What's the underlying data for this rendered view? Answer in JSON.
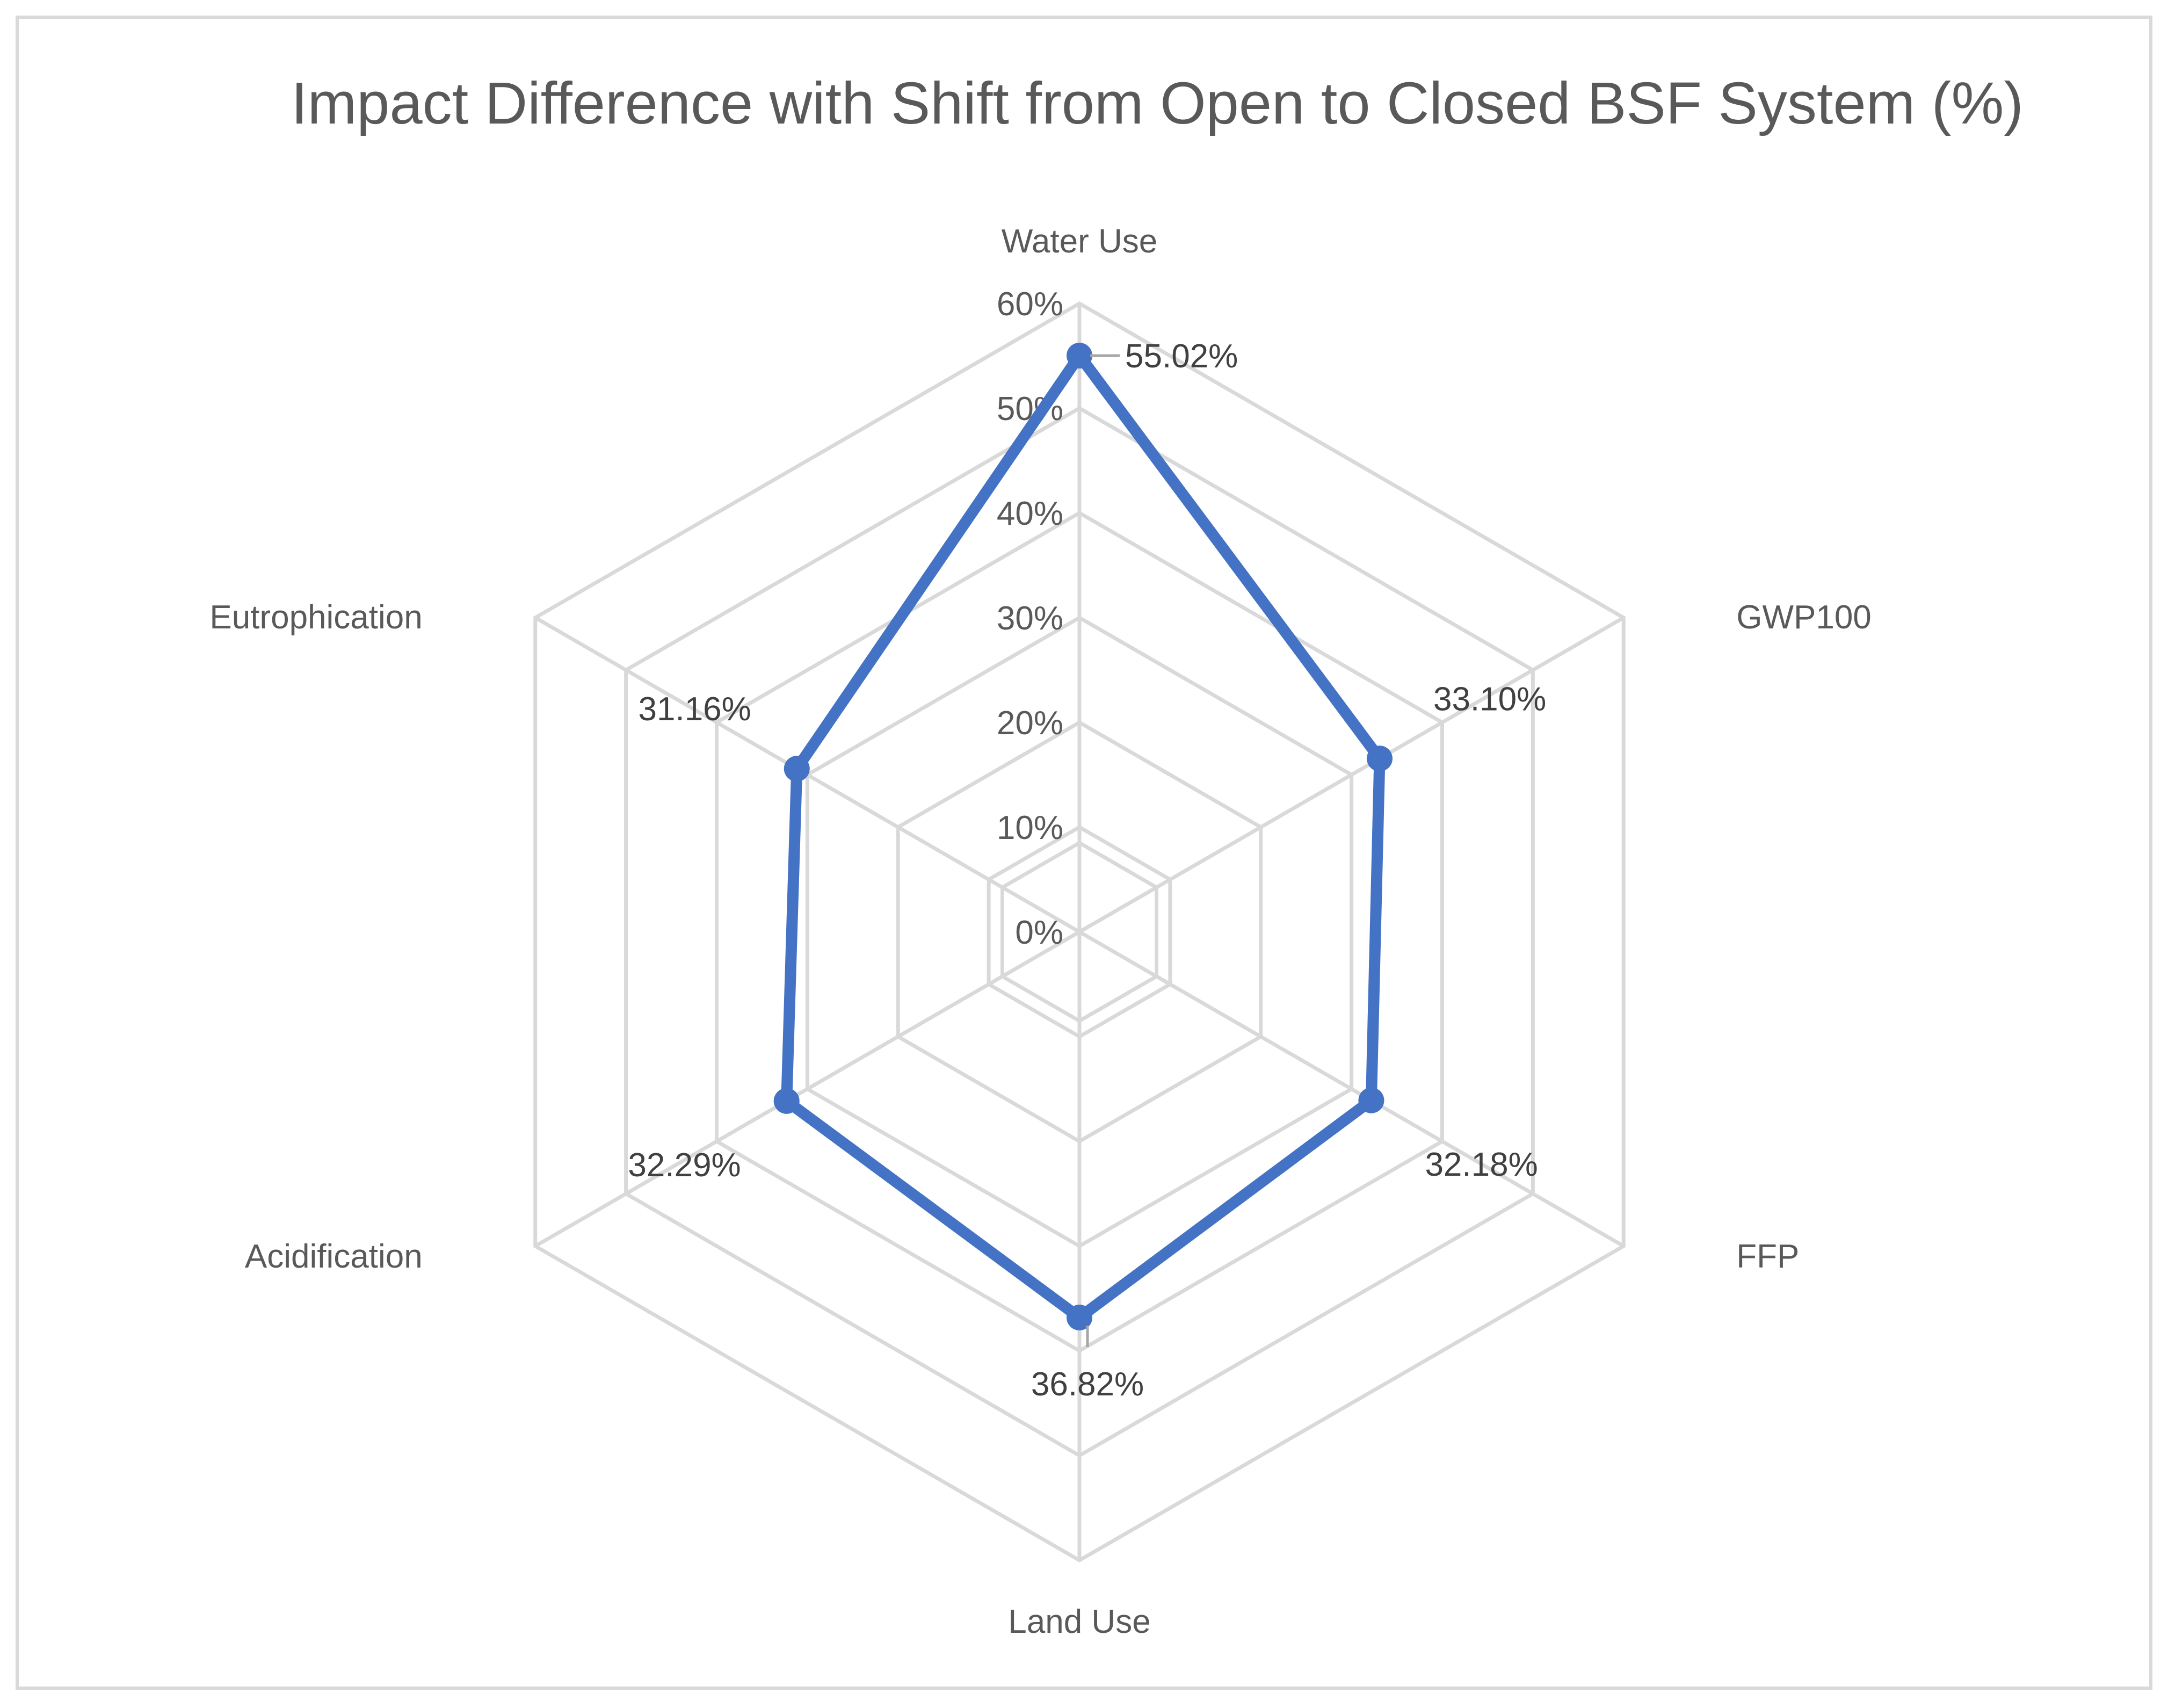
{
  "chart_data": {
    "type": "radar",
    "title": "Impact Difference with Shift from Open to Closed BSF System (%)",
    "categories": [
      "Water Use",
      "GWP100",
      "FFP",
      "Land Use",
      "Acidification",
      "Eutrophication"
    ],
    "series": [
      {
        "name": "Impact Difference",
        "values": [
          55.02,
          33.1,
          32.18,
          36.82,
          32.29,
          31.16
        ],
        "labels": [
          "55.02%",
          "33.10%",
          "32.18%",
          "36.82%",
          "32.29%",
          "31.16%"
        ],
        "color": "#4472c4"
      }
    ],
    "rlim": [
      0,
      60
    ],
    "r_ticks": [
      0,
      10,
      20,
      30,
      40,
      50,
      60
    ],
    "r_tick_labels": [
      "0%",
      "10%",
      "20%",
      "30%",
      "40%",
      "50%",
      "60%"
    ],
    "grid": true,
    "legend": "none"
  }
}
